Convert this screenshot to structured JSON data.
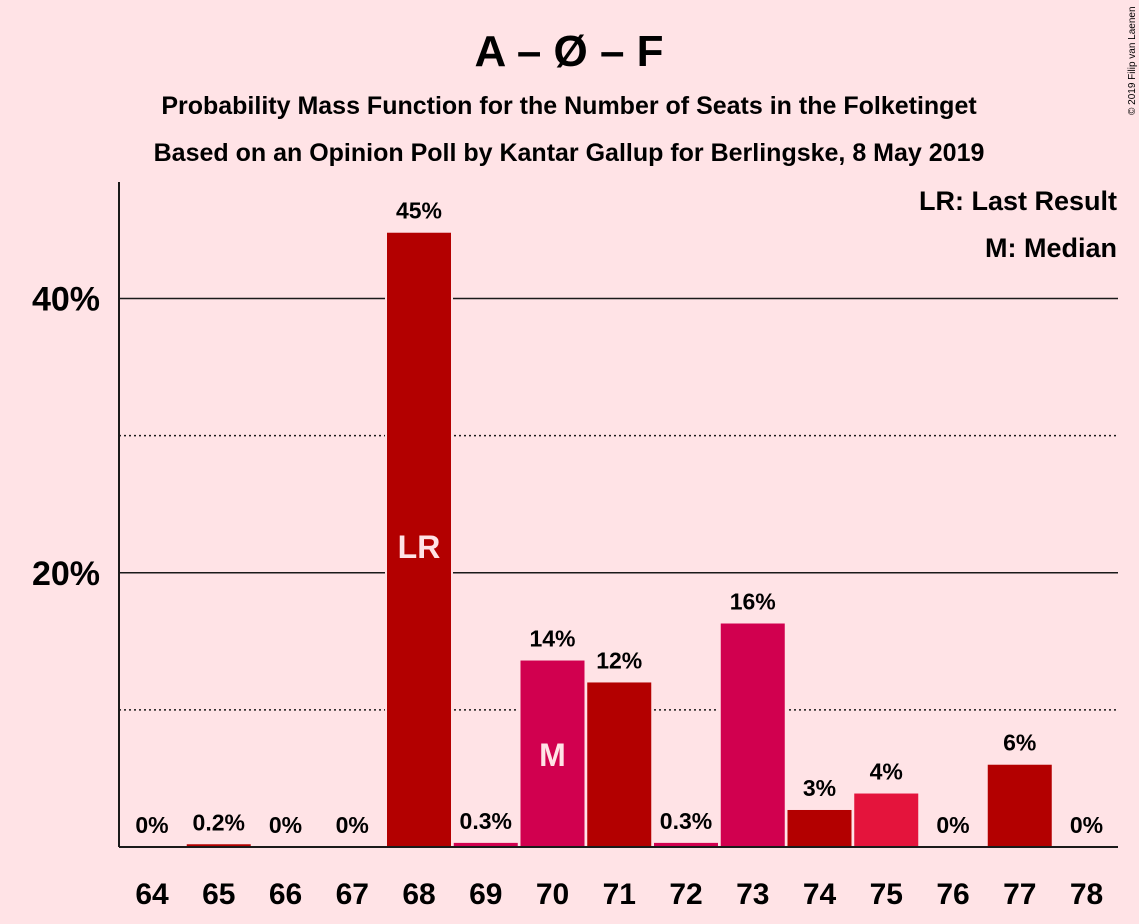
{
  "chart_data": {
    "type": "bar",
    "title": "A – Ø – F",
    "subtitle_lines": [
      "Probability Mass Function for the Number of Seats in the Folketinget",
      "Based on an Opinion Poll by Kantar Gallup for Berlingske, 8 May 2019"
    ],
    "copyright": "© 2019 Filip van Laenen",
    "categories": [
      "64",
      "65",
      "66",
      "67",
      "68",
      "69",
      "70",
      "71",
      "72",
      "73",
      "74",
      "75",
      "76",
      "77",
      "78"
    ],
    "values": [
      0,
      0.2,
      0,
      0,
      44.8,
      0.3,
      13.6,
      12.0,
      0.3,
      16.3,
      2.7,
      3.9,
      0,
      6.0,
      0
    ],
    "value_labels": [
      "0%",
      "0.2%",
      "0%",
      "0%",
      "45%",
      "0.3%",
      "14%",
      "12%",
      "0.3%",
      "16%",
      "3%",
      "4%",
      "0%",
      "6%",
      "0%"
    ],
    "bar_colors": [
      "#b30000",
      "#b30000",
      "#b30000",
      "#b30000",
      "#b30000",
      "#d1004f",
      "#d1004f",
      "#b30000",
      "#d1004f",
      "#d1004f",
      "#b30000",
      "#e4143c",
      "#b30000",
      "#b30000",
      "#b30000"
    ],
    "in_bar_markers": [
      {
        "category": "68",
        "text": "LR"
      },
      {
        "category": "70",
        "text": "M"
      }
    ],
    "ylim": [
      0,
      48.5
    ],
    "yticks": [
      {
        "value": 20,
        "label": "20%",
        "style": "solid"
      },
      {
        "value": 40,
        "label": "40%",
        "style": "solid"
      }
    ],
    "minor_gridlines": [
      10,
      30
    ],
    "legend": {
      "placement": "top-right",
      "entries": [
        "LR: Last Result",
        "M: Median"
      ]
    },
    "xlabel": "",
    "ylabel": ""
  }
}
